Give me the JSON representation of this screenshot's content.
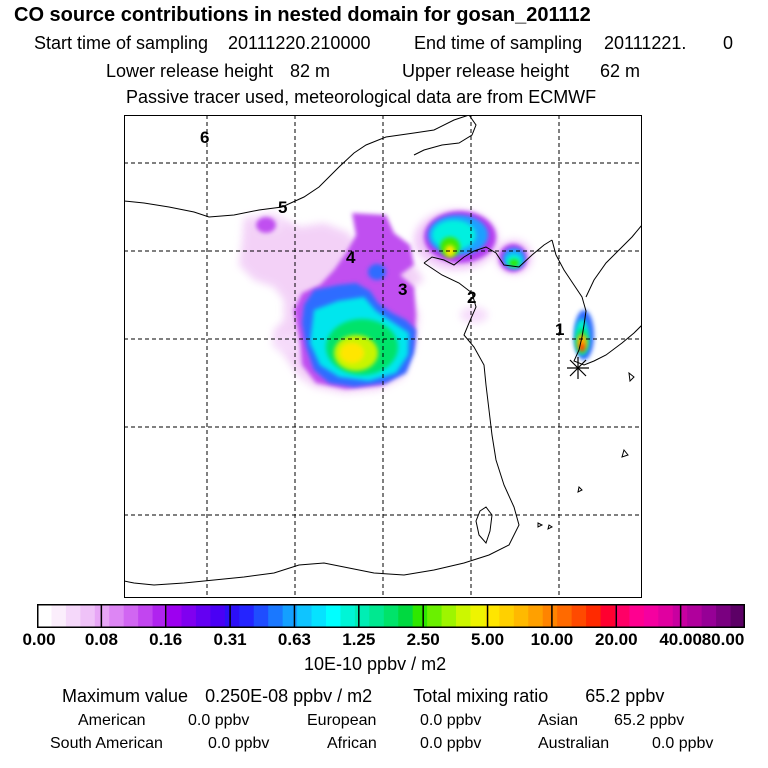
{
  "header": {
    "title": "CO  source contributions in nested domain for gosan_201112",
    "start_label": "Start time of sampling",
    "start_value": "20111220.210000",
    "end_label": "End time of sampling",
    "end_value": "20111221.",
    "end_value_suffix": "0",
    "lower_label": "Lower release height",
    "lower_value": "82 m",
    "upper_label": "Upper release height",
    "upper_value": "62 m",
    "note": "Passive tracer used, meteorological data are from ECMWF"
  },
  "chart_data": {
    "type": "heatmap",
    "title": "CO  source contributions in nested domain for gosan_201112",
    "units": "10E-10 ppbv / m2",
    "colorbar_ticks": [
      "0.00",
      "0.08",
      "0.16",
      "0.31",
      "0.63",
      "1.25",
      "2.50",
      "5.00",
      "10.00",
      "20.00",
      "40.00",
      "80.00"
    ],
    "colorbar_colors": [
      "#ffffff",
      "#fbeefc",
      "#f5d8fa",
      "#efc2f8",
      "#e7a6f6",
      "#dd86f4",
      "#d166f2",
      "#c245f0",
      "#b023ef",
      "#9d00f0",
      "#8000f0",
      "#6400f2",
      "#4a00f5",
      "#2c0ff7",
      "#2424ff",
      "#1f4dff",
      "#1a78ff",
      "#14a0ff",
      "#0fc4ff",
      "#06e2ff",
      "#00ffff",
      "#00f5d6",
      "#00eeb4",
      "#00e890",
      "#00e36a",
      "#00d940",
      "#2ee800",
      "#6af000",
      "#9ef500",
      "#ccf700",
      "#eef400",
      "#ffe600",
      "#ffd000",
      "#ffb900",
      "#ffa000",
      "#ff8400",
      "#ff6a00",
      "#ff4a00",
      "#ff2a00",
      "#ff0030",
      "#ff0066",
      "#ff0090",
      "#f500a0",
      "#e000a0",
      "#c800a0",
      "#b0009c",
      "#960096",
      "#7a0080",
      "#5c0066"
    ],
    "trajectory_labels": [
      "1",
      "2",
      "3",
      "4",
      "5",
      "6"
    ],
    "receptor_symbol": "✳",
    "grid": true
  },
  "summary": {
    "max_label": "Maximum value",
    "max_value": "0.250E-08 ppbv / m2",
    "total_label": "Total mixing ratio",
    "total_value": "65.2 ppbv",
    "regions": [
      {
        "name": "American",
        "value": "0.0 ppbv"
      },
      {
        "name": "European",
        "value": "0.0 ppbv"
      },
      {
        "name": "Asian",
        "value": "65.2 ppbv"
      },
      {
        "name": "South American",
        "value": "0.0 ppbv"
      },
      {
        "name": "African",
        "value": "0.0 ppbv"
      },
      {
        "name": "Australian",
        "value": "0.0 ppbv"
      }
    ]
  }
}
